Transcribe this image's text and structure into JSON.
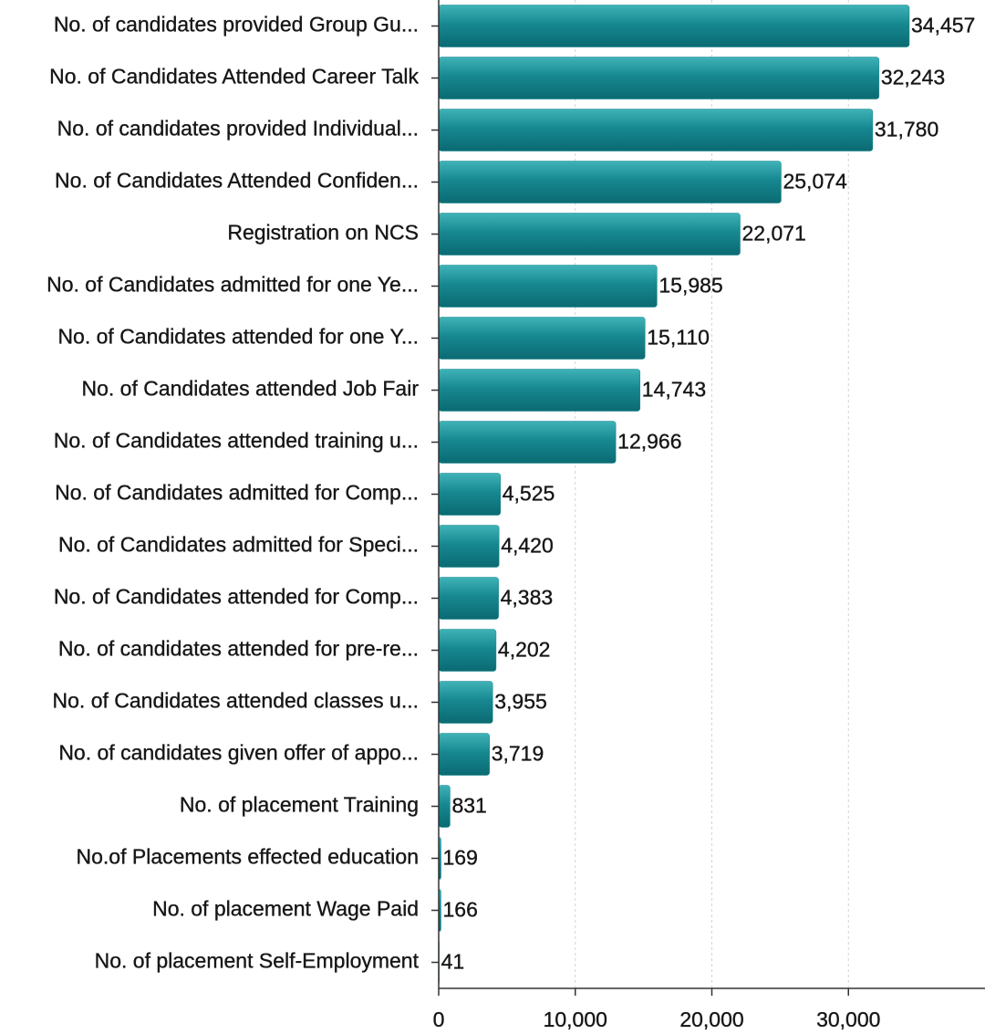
{
  "chart_data": {
    "type": "bar",
    "orientation": "horizontal",
    "categories": [
      "No. of candidates provided Group Gu...",
      "No. of Candidates Attended Career Talk",
      "No. of candidates provided Individual...",
      "No. of Candidates Attended Confiden...",
      "Registration on NCS",
      "No. of Candidates admitted for one Ye...",
      "No. of Candidates attended for one Y...",
      "No. of Candidates attended Job Fair",
      "No. of Candidates attended training u...",
      "No. of Candidates admitted for Comp...",
      "No. of Candidates admitted for Speci...",
      "No. of Candidates attended  for Comp...",
      "No. of candidates attended for  pre-re...",
      "No. of Candidates attended classes u...",
      "No. of candidates given offer of appo...",
      "No. of placement Training",
      "No.of Placements effected education",
      "No. of placement Wage Paid",
      "No. of placement Self-Employment"
    ],
    "values": [
      34457,
      32243,
      31780,
      25074,
      22071,
      15985,
      15110,
      14743,
      12966,
      4525,
      4420,
      4383,
      4202,
      3955,
      3719,
      831,
      169,
      166,
      41
    ],
    "value_labels": [
      "34,457",
      "32,243",
      "31,780",
      "25,074",
      "22,071",
      "15,985",
      "15,110",
      "14,743",
      "12,966",
      "4,525",
      "4,420",
      "4,383",
      "4,202",
      "3,955",
      "3,719",
      "831",
      "169",
      "166",
      "41"
    ],
    "color": "#178890",
    "xlim": [
      0,
      40000
    ],
    "xticks": [
      0,
      {
        "value": 10000,
        "label": "10,000"
      },
      {
        "value": 20000,
        "label": "20,000"
      },
      {
        "value": 30000,
        "label": "30,000"
      }
    ],
    "grid": true
  }
}
